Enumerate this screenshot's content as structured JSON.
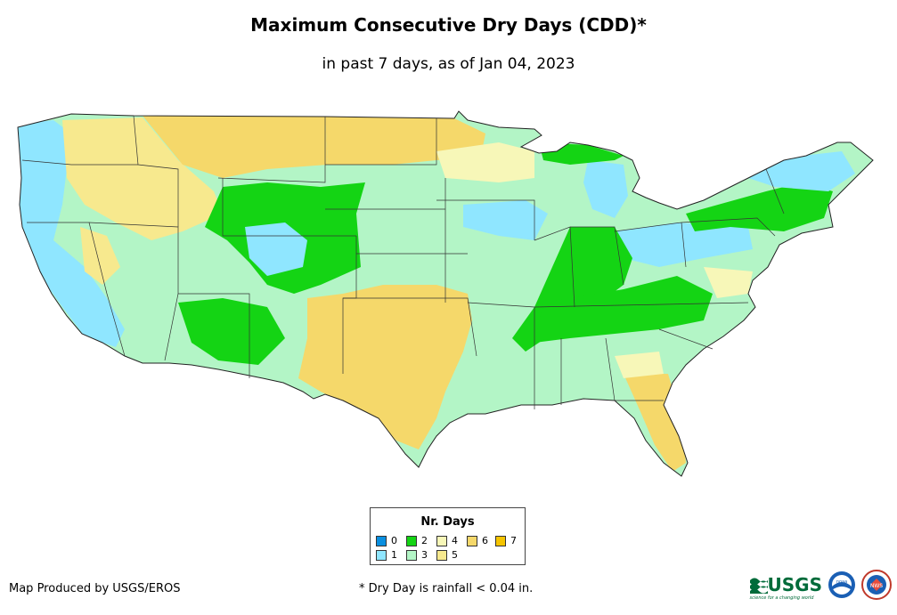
{
  "title": "Maximum Consecutive Dry Days (CDD)*",
  "subtitle": "in past 7 days, as of Jan 04, 2023",
  "legend": {
    "title": "Nr. Days",
    "items": [
      {
        "label": "0",
        "color": "#0a8fe0"
      },
      {
        "label": "1",
        "color": "#8fe6ff"
      },
      {
        "label": "2",
        "color": "#14d414"
      },
      {
        "label": "3",
        "color": "#b3f5c6"
      },
      {
        "label": "4",
        "color": "#f7f7b8"
      },
      {
        "label": "5",
        "color": "#f7e98e"
      },
      {
        "label": "6",
        "color": "#f5d86a"
      },
      {
        "label": "7",
        "color": "#f5c400"
      }
    ]
  },
  "footer": {
    "credit": "Map Produced by USGS/EROS",
    "note": "* Dry Day is rainfall < 0.04 in."
  },
  "logos": {
    "usgs": "USGS",
    "usgs_tagline": "science for a changing world",
    "noaa": "noaa",
    "nws": "NWS"
  }
}
